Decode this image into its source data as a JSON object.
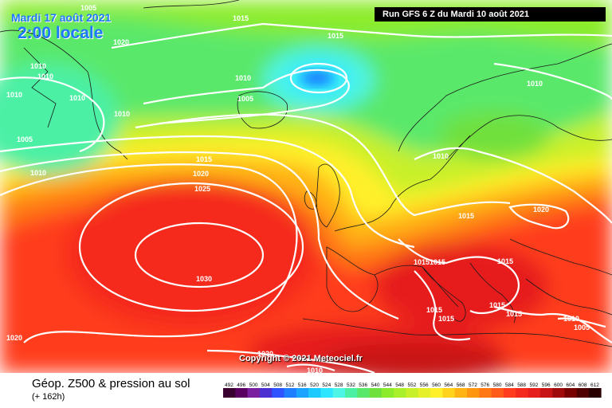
{
  "header": {
    "date": "Mardi 17 août 2021",
    "time": "2:00 locale",
    "run": "Run GFS 6 Z du Mardi 10 août 2021"
  },
  "copyright": "Copyright © 2021 Meteociel.fr",
  "footer": {
    "title": "Géop. Z500 & pression au sol",
    "subtitle": "(+ 162h)"
  },
  "legend": {
    "values": [
      "492",
      "496",
      "500",
      "504",
      "508",
      "512",
      "516",
      "520",
      "524",
      "528",
      "532",
      "536",
      "540",
      "544",
      "548",
      "552",
      "556",
      "560",
      "564",
      "568",
      "572",
      "576",
      "580",
      "584",
      "588",
      "592",
      "596",
      "600",
      "604",
      "608",
      "612"
    ],
    "colors": [
      "#3a0030",
      "#5a0060",
      "#7a1fa0",
      "#4b2fd0",
      "#2f54ff",
      "#1f7dff",
      "#1aa3ff",
      "#1ccaff",
      "#2ee6ff",
      "#4df5e6",
      "#4cf0a5",
      "#5ae86a",
      "#6fe03c",
      "#8cec2c",
      "#aaf02a",
      "#c8f02a",
      "#e6f02a",
      "#fff02a",
      "#ffd21c",
      "#ffb414",
      "#ff9610",
      "#ff7814",
      "#ff5a1a",
      "#ff3c1e",
      "#f52a1e",
      "#e61e1e",
      "#c81414",
      "#a00a0a",
      "#780000",
      "#500000",
      "#280000"
    ]
  },
  "isobars": [
    {
      "value": "1005",
      "name": "isobar-label-1005-topleft"
    },
    {
      "value": "1020",
      "name": "isobar-label-1020-topleft"
    },
    {
      "value": "1015",
      "name": "isobar-label-1015-greenland"
    },
    {
      "value": "1015",
      "name": "isobar-label-1015-north"
    },
    {
      "value": "1010",
      "name": "isobar-label-1010-a"
    },
    {
      "value": "1010",
      "name": "isobar-label-1010-b"
    },
    {
      "value": "1010",
      "name": "isobar-label-1010-c"
    },
    {
      "value": "1010",
      "name": "isobar-label-1010-d"
    },
    {
      "value": "1010",
      "name": "isobar-label-1010-e"
    },
    {
      "value": "1010",
      "name": "isobar-label-1010-f"
    },
    {
      "value": "1005",
      "name": "isobar-label-1005-iceland"
    },
    {
      "value": "1005",
      "name": "isobar-label-1005-west"
    },
    {
      "value": "1010",
      "name": "isobar-label-1010-west"
    },
    {
      "value": "1010",
      "name": "isobar-label-1010-scandinavia"
    },
    {
      "value": "1010",
      "name": "isobar-label-1010-norway"
    },
    {
      "value": "1015",
      "name": "isobar-label-1015-atlantic"
    },
    {
      "value": "1020",
      "name": "isobar-label-1020-atlantic"
    },
    {
      "value": "1025",
      "name": "isobar-label-1025-atlantic"
    },
    {
      "value": "1030",
      "name": "isobar-label-1030-high"
    },
    {
      "value": "1020",
      "name": "isobar-label-1020-sw"
    },
    {
      "value": "1015",
      "name": "isobar-label-1015-central-europe"
    },
    {
      "value": "1020",
      "name": "isobar-label-1020-east"
    },
    {
      "value": "1015",
      "name": "isobar-label-1015-italy-a"
    },
    {
      "value": "1015",
      "name": "isobar-label-1015-italy-b"
    },
    {
      "value": "1015",
      "name": "isobar-label-1015-balkans"
    },
    {
      "value": "1015",
      "name": "isobar-label-1015-med-a"
    },
    {
      "value": "1015",
      "name": "isobar-label-1015-med-b"
    },
    {
      "value": "1015",
      "name": "isobar-label-1015-greece"
    },
    {
      "value": "1015",
      "name": "isobar-label-1015-turkey"
    },
    {
      "value": "1010",
      "name": "isobar-label-1010-east"
    },
    {
      "value": "1005",
      "name": "isobar-label-1005-east"
    },
    {
      "value": "1020",
      "name": "isobar-label-1020-africa"
    },
    {
      "value": "1010",
      "name": "isobar-label-1010-africa"
    }
  ]
}
